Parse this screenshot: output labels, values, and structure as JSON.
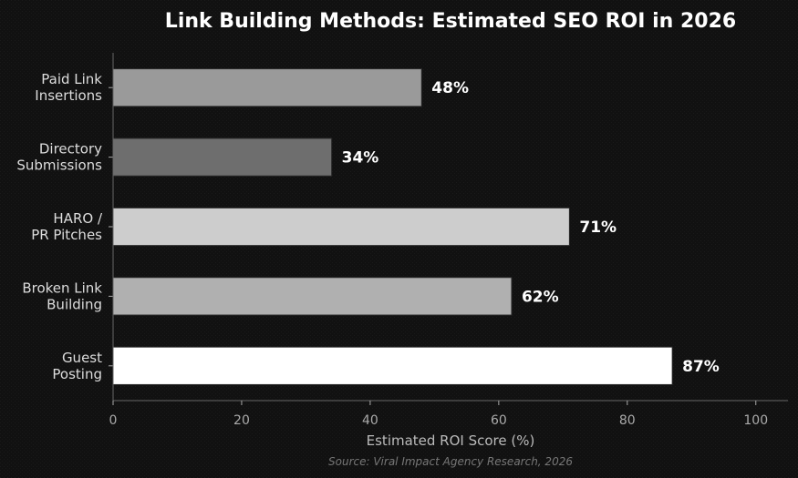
{
  "chart_data": {
    "type": "bar",
    "orientation": "horizontal",
    "title": "Link Building Methods: Estimated SEO ROI in 2026",
    "xlabel": "Estimated ROI Score (%)",
    "ylabel": "",
    "xlim": [
      0,
      105
    ],
    "xticks": [
      0,
      20,
      40,
      60,
      80,
      100
    ],
    "grid": false,
    "categories": [
      [
        "Paid Link",
        "Insertions"
      ],
      [
        "Directory",
        "Submissions"
      ],
      [
        "HARO /",
        "PR Pitches"
      ],
      [
        "Broken Link",
        "Building"
      ],
      [
        "Guest",
        "Posting"
      ]
    ],
    "values": [
      48,
      34,
      71,
      62,
      87
    ],
    "value_labels": [
      "48%",
      "34%",
      "71%",
      "62%",
      "87%"
    ],
    "bar_colors": [
      "#9a9a9a",
      "#6e6e6e",
      "#cdcdcd",
      "#b0b0b0",
      "#ffffff"
    ],
    "source": "Source: Viral Impact Agency Research, 2026"
  },
  "colors": {
    "background": "#111111",
    "axis": "#666666",
    "bar_edge": "#2a2a2a"
  }
}
